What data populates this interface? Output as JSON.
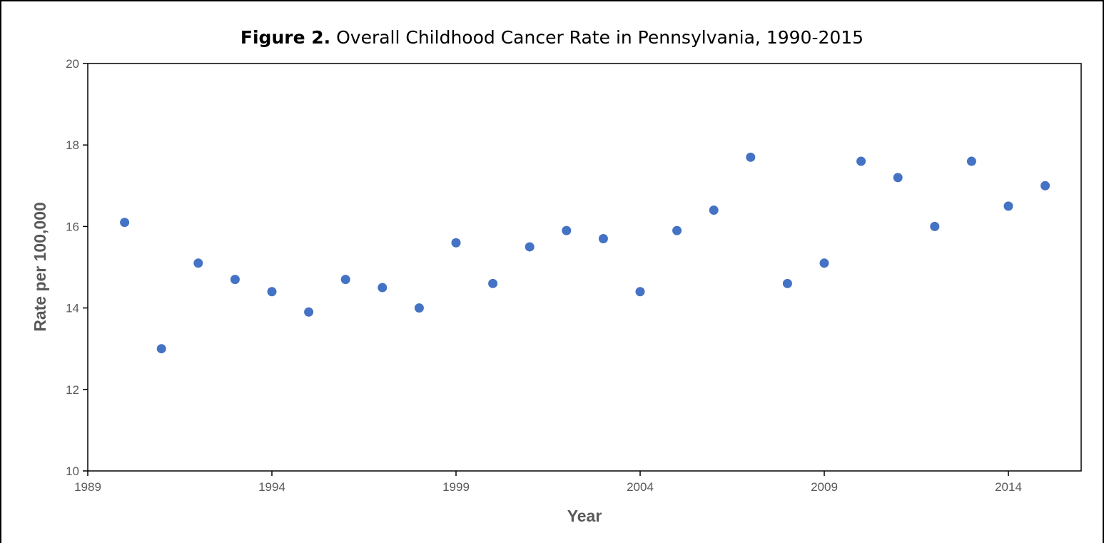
{
  "chart_data": {
    "type": "scatter",
    "title_prefix": "Figure 2.",
    "title": "Overall Childhood Cancer Rate in Pennsylvania, 1990-2015",
    "xlabel": "Year",
    "ylabel": "Rate per 100,000",
    "xlim": [
      1989,
      2016.5
    ],
    "ylim": [
      10,
      20
    ],
    "xticks": [
      1989,
      1994,
      1999,
      2004,
      2009,
      2014
    ],
    "yticks": [
      10,
      12,
      14,
      16,
      18,
      20
    ],
    "grid": false,
    "marker_color": "#4472C4",
    "points": [
      {
        "x": 1990,
        "y": 16.1
      },
      {
        "x": 1991,
        "y": 13.0
      },
      {
        "x": 1992,
        "y": 15.1
      },
      {
        "x": 1993,
        "y": 14.7
      },
      {
        "x": 1994,
        "y": 14.4
      },
      {
        "x": 1995,
        "y": 13.9
      },
      {
        "x": 1996,
        "y": 14.7
      },
      {
        "x": 1997,
        "y": 14.5
      },
      {
        "x": 1998,
        "y": 14.0
      },
      {
        "x": 1999,
        "y": 15.6
      },
      {
        "x": 2000,
        "y": 14.6
      },
      {
        "x": 2001,
        "y": 15.5
      },
      {
        "x": 2002,
        "y": 15.9
      },
      {
        "x": 2003,
        "y": 15.7
      },
      {
        "x": 2004,
        "y": 14.4
      },
      {
        "x": 2005,
        "y": 15.9
      },
      {
        "x": 2006,
        "y": 16.4
      },
      {
        "x": 2007,
        "y": 17.7
      },
      {
        "x": 2008,
        "y": 14.6
      },
      {
        "x": 2009,
        "y": 15.1
      },
      {
        "x": 2010,
        "y": 17.6
      },
      {
        "x": 2011,
        "y": 17.2
      },
      {
        "x": 2012,
        "y": 16.0
      },
      {
        "x": 2013,
        "y": 17.6
      },
      {
        "x": 2014,
        "y": 16.5
      },
      {
        "x": 2015,
        "y": 17.0
      }
    ]
  }
}
